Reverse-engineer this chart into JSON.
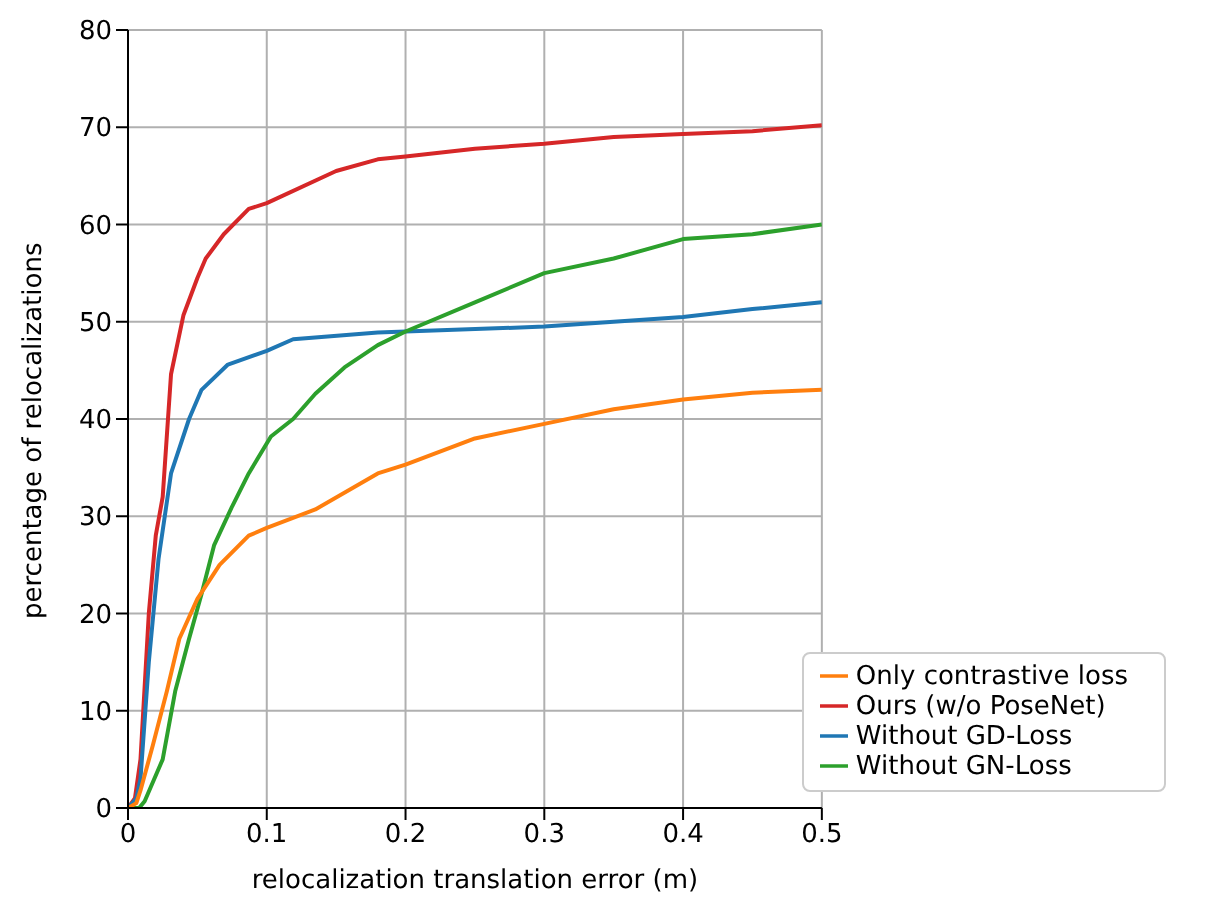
{
  "chart_data": {
    "type": "line",
    "xlabel": "relocalization translation error (m)",
    "ylabel": "percentage of relocalizations",
    "xlim": [
      0,
      0.5
    ],
    "ylim": [
      0,
      80
    ],
    "xticks": [
      0,
      0.1,
      0.2,
      0.3,
      0.4,
      0.5
    ],
    "yticks": [
      0,
      10,
      20,
      30,
      40,
      50,
      60,
      70,
      80
    ],
    "grid": true,
    "legend": "bottom right",
    "marker": "none",
    "line_style": "solid",
    "series": [
      {
        "name": "Ours (w/o PoseNet)",
        "color": "#d62728",
        "x": [
          0,
          0.005,
          0.009,
          0.015,
          0.02,
          0.025,
          0.031,
          0.04,
          0.05,
          0.056,
          0.069,
          0.087,
          0.1,
          0.15,
          0.18,
          0.2,
          0.25,
          0.3,
          0.35,
          0.4,
          0.45,
          0.5
        ],
        "values": [
          0,
          1,
          5,
          20,
          28,
          32,
          44.6,
          50.7,
          54.5,
          56.5,
          59,
          61.6,
          62.2,
          65.5,
          66.7,
          67,
          67.8,
          68.3,
          69,
          69.3,
          69.6,
          70.2
        ]
      },
      {
        "name": "Without GD-Loss",
        "color": "#1f77b4",
        "x": [
          0,
          0.006,
          0.009,
          0.015,
          0.022,
          0.031,
          0.044,
          0.053,
          0.072,
          0.1,
          0.119,
          0.18,
          0.2,
          0.3,
          0.35,
          0.4,
          0.45,
          0.5
        ],
        "values": [
          0,
          1,
          3,
          15,
          25.6,
          34.4,
          40,
          43,
          45.6,
          47,
          48.2,
          48.9,
          49,
          49.5,
          50,
          50.5,
          51.3,
          52
        ]
      },
      {
        "name": "Without GN-Loss",
        "color": "#2ca02c",
        "x": [
          0,
          0.008,
          0.012,
          0.025,
          0.034,
          0.044,
          0.053,
          0.062,
          0.075,
          0.087,
          0.103,
          0.119,
          0.135,
          0.156,
          0.18,
          0.2,
          0.25,
          0.3,
          0.35,
          0.4,
          0.45,
          0.5
        ],
        "values": [
          0,
          0,
          0.7,
          5,
          12,
          17.4,
          22,
          27,
          31,
          34.4,
          38.2,
          40,
          42.6,
          45.3,
          47.6,
          49,
          52,
          55,
          56.5,
          58.5,
          59,
          60
        ]
      },
      {
        "name": "Only contrastive loss",
        "color": "#ff7f0e",
        "x": [
          0,
          0.006,
          0.009,
          0.018,
          0.028,
          0.037,
          0.05,
          0.066,
          0.087,
          0.1,
          0.135,
          0.18,
          0.2,
          0.25,
          0.3,
          0.35,
          0.4,
          0.45,
          0.5
        ],
        "values": [
          0,
          0.5,
          1.8,
          6.5,
          12,
          17.4,
          21.5,
          25,
          28,
          28.8,
          30.7,
          34.4,
          35.3,
          38,
          39.5,
          41,
          42,
          42.7,
          43
        ]
      }
    ]
  }
}
